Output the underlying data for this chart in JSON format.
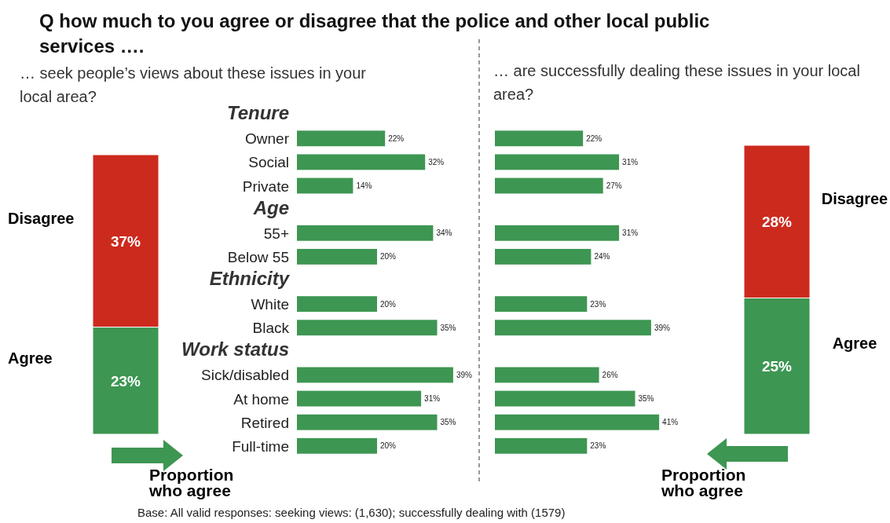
{
  "chart_data": [
    {
      "type": "bar",
      "stacked": true,
      "categories": [
        null
      ],
      "legend": "left",
      "annotations": [
        "Proportion who agree"
      ],
      "series": [
        {
          "name": "Agree",
          "color": "#3d9652",
          "values": [
            23
          ],
          "value_labels": [
            "23%"
          ]
        },
        {
          "name": "Disagree",
          "color": "#cd2a1e",
          "values": [
            37
          ],
          "value_labels": [
            "37%"
          ]
        }
      ]
    },
    {
      "type": "bar",
      "orientation": "horizontal",
      "title": "Q how much to you agree or disagree that the police and other local public services ….",
      "subtitle": "… seek people’s views about these issues in your local area?",
      "annotations": [
        "Base: All valid responses: seeking views:  (1,630); successfully dealing with (1579)"
      ],
      "categories": [
        "Tenure",
        "Owner",
        "Social",
        "Private",
        "Age",
        "55+",
        "Below 55",
        "Ethnicity",
        "White",
        "Black",
        "Work status",
        "Sick/disabled",
        "At home",
        "Retired",
        "Full-time"
      ],
      "color": "#3d9652",
      "values": [
        null,
        22,
        32,
        14,
        null,
        34,
        20,
        null,
        20,
        35,
        null,
        39,
        31,
        35,
        20
      ],
      "value_labels": [
        null,
        "22%",
        "32%",
        "14%",
        null,
        "34%",
        "20%",
        null,
        "20%",
        "35%",
        null,
        "39%",
        "31%",
        "35%",
        "20%"
      ]
    },
    {
      "type": "bar",
      "orientation": "horizontal",
      "subtitle": "… are successfully dealing these issues in your local area?",
      "categories": [
        null,
        null,
        null,
        null,
        null,
        null,
        null,
        null,
        null,
        null,
        null,
        null,
        null,
        null,
        null
      ],
      "color": "#3d9652",
      "values": [
        null,
        22,
        31,
        27,
        null,
        31,
        24,
        null,
        23,
        39,
        null,
        26,
        35,
        41,
        23
      ],
      "value_labels": [
        null,
        "22%",
        "31%",
        "27%",
        null,
        "31%",
        "24%",
        null,
        "23%",
        "39%",
        null,
        "26%",
        "35%",
        "41%",
        "23%"
      ]
    },
    {
      "type": "bar",
      "stacked": true,
      "categories": [
        null
      ],
      "legend": "right",
      "annotations": [
        "Proportion who agree"
      ],
      "series": [
        {
          "name": "Agree",
          "color": "#3d9652",
          "values": [
            25
          ],
          "value_labels": [
            "25%"
          ]
        },
        {
          "name": "Disagree",
          "color": "#cd2a1e",
          "values": [
            28
          ],
          "value_labels": [
            "28%"
          ]
        }
      ]
    }
  ]
}
